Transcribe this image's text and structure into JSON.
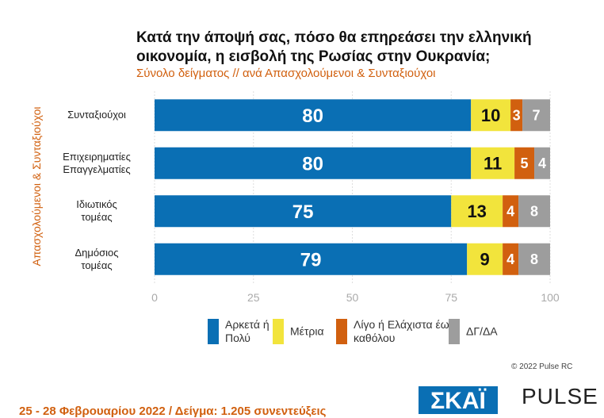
{
  "chart_data": {
    "type": "bar",
    "orientation": "horizontal",
    "stacked": true,
    "title": [
      "Κατά την άποψή σας, πόσο θα επηρεάσει την ελληνική",
      "οικονομία, η εισβολή της Ρωσίας στην Ουκρανία;"
    ],
    "subtitle": "Σύνολο δείγματος // ανά Απασχολούμενοι & Συνταξιούχοι",
    "y_label": "Απασχολούμενοι & Συνταξιούχοι",
    "categories": [
      "Συνταξιούχοι",
      "Επιχειρηματίες Επαγγελματίες",
      "Ιδιωτικός τομέας",
      "Δημόσιος τομέας"
    ],
    "series": [
      {
        "name": "Αρκετά ή Πολύ",
        "color": "#0a6fb4",
        "label_color": "#ffffff",
        "values": [
          80,
          80,
          75,
          79
        ]
      },
      {
        "name": "Μέτρια",
        "color": "#f2e43c",
        "label_color": "#111111",
        "values": [
          10,
          11,
          13,
          9
        ]
      },
      {
        "name": "Λίγο ή Ελάχιστα έως καθόλου",
        "color": "#d1600f",
        "label_color": "#ffffff",
        "values": [
          3,
          5,
          4,
          4
        ]
      },
      {
        "name": "ΔΓ/ΔΑ",
        "color": "#9d9d9d",
        "label_color": "#ffffff",
        "values": [
          7,
          4,
          8,
          8
        ]
      }
    ],
    "xlim": [
      0,
      100
    ],
    "xticks": [
      0,
      25,
      50,
      75,
      100
    ],
    "grid": true
  },
  "copyright": "© 2022 Pulse RC",
  "footer": "25 - 28 Φεβρουαρίου 2022  /  Δείγμα:  1.205 συνεντεύξεις",
  "logos": [
    "ΣΚΑΪ",
    "PULSE"
  ]
}
